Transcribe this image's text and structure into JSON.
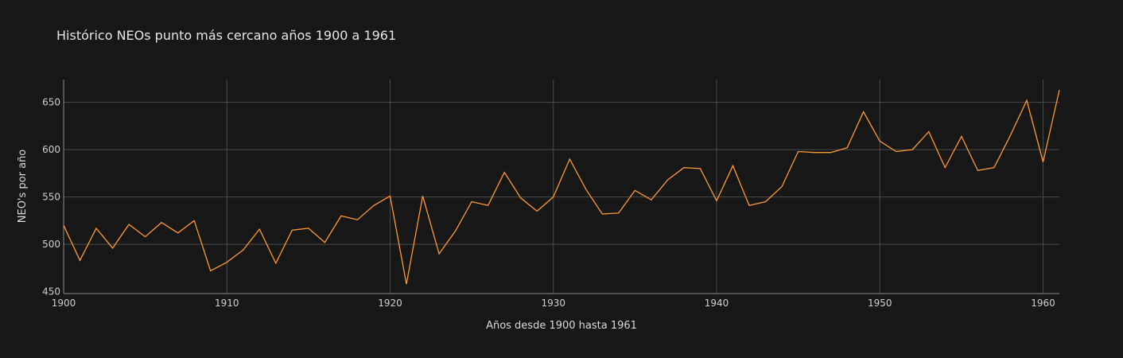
{
  "chart_data": {
    "type": "line",
    "title": "Histórico NEOs punto más cercano años 1900 a 1961",
    "xlabel": "Años desde 1900 hasta 1961",
    "ylabel": "NEO's por año",
    "xlim": [
      1900,
      1961
    ],
    "ylim": [
      448,
      674
    ],
    "xticks": [
      1900,
      1910,
      1920,
      1930,
      1940,
      1950,
      1960
    ],
    "yticks": [
      450,
      500,
      550,
      600,
      650
    ],
    "grid": true,
    "line_color": "#ff9933",
    "series": [
      {
        "x": [
          1900,
          1901,
          1902,
          1903,
          1904,
          1905,
          1906,
          1907,
          1908,
          1909,
          1910,
          1911,
          1912,
          1913,
          1914,
          1915,
          1916,
          1917,
          1918,
          1919,
          1920,
          1921,
          1922,
          1923,
          1924,
          1925,
          1926,
          1927,
          1928,
          1929,
          1930,
          1931,
          1932,
          1933,
          1934,
          1935,
          1936,
          1937,
          1938,
          1939,
          1940,
          1941,
          1942,
          1943,
          1944,
          1945,
          1946,
          1947,
          1948,
          1949,
          1950,
          1951,
          1952,
          1953,
          1954,
          1955,
          1956,
          1957,
          1958,
          1959,
          1960,
          1961
        ],
        "values": [
          520,
          483,
          517,
          496,
          521,
          508,
          523,
          512,
          525,
          472,
          481,
          494,
          516,
          480,
          515,
          517,
          502,
          530,
          526,
          541,
          551,
          458,
          551,
          490,
          514,
          545,
          541,
          576,
          549,
          535,
          550,
          590,
          558,
          532,
          533,
          557,
          547,
          568,
          581,
          580,
          546,
          583,
          541,
          545,
          561,
          598,
          597,
          597,
          602,
          640,
          609,
          598,
          600,
          619,
          581,
          614,
          578,
          581,
          615,
          652,
          587,
          663
        ]
      }
    ]
  }
}
